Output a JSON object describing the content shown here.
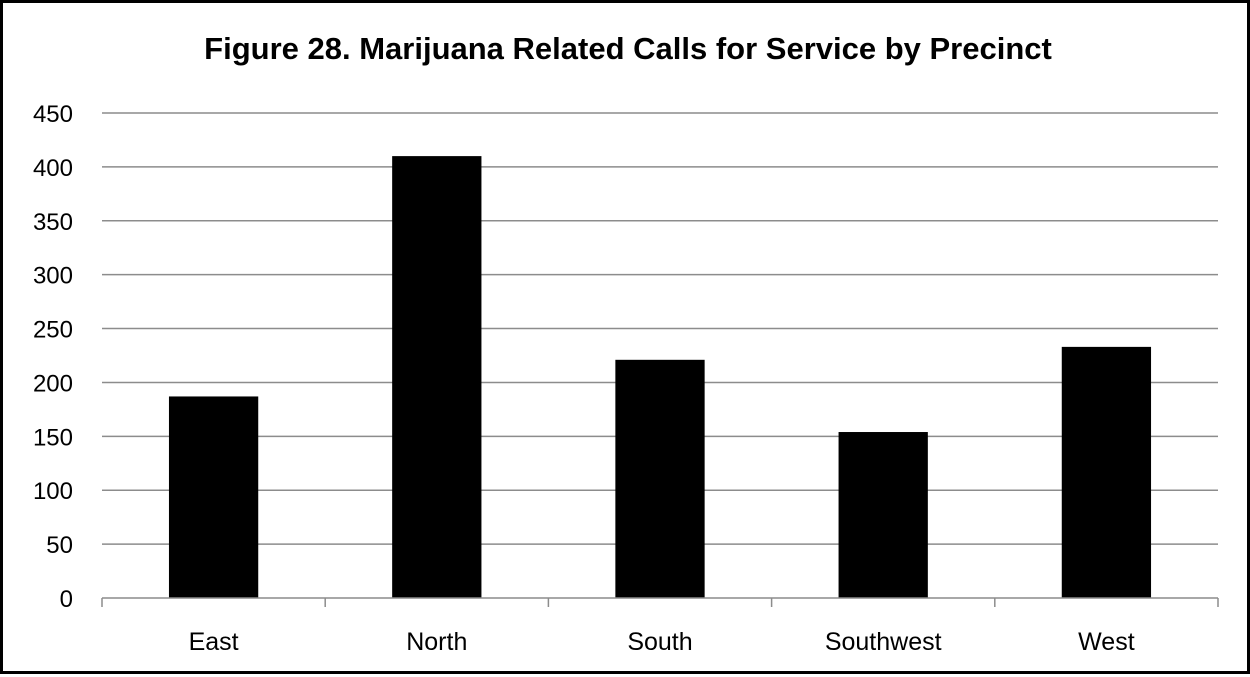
{
  "chart_data": {
    "type": "bar",
    "title": "Figure 28. Marijuana Related Calls for Service by Precinct",
    "xlabel": "",
    "ylabel": "",
    "categories": [
      "East",
      "North",
      "South",
      "Southwest",
      "West"
    ],
    "values": [
      187,
      410,
      221,
      154,
      233
    ],
    "ylim": [
      0,
      450
    ],
    "yticks": [
      0,
      50,
      100,
      150,
      200,
      250,
      300,
      350,
      400,
      450
    ],
    "grid": "horizontal",
    "legend": "none",
    "bar_color": "#000000",
    "grid_color": "#8c8c8c"
  }
}
